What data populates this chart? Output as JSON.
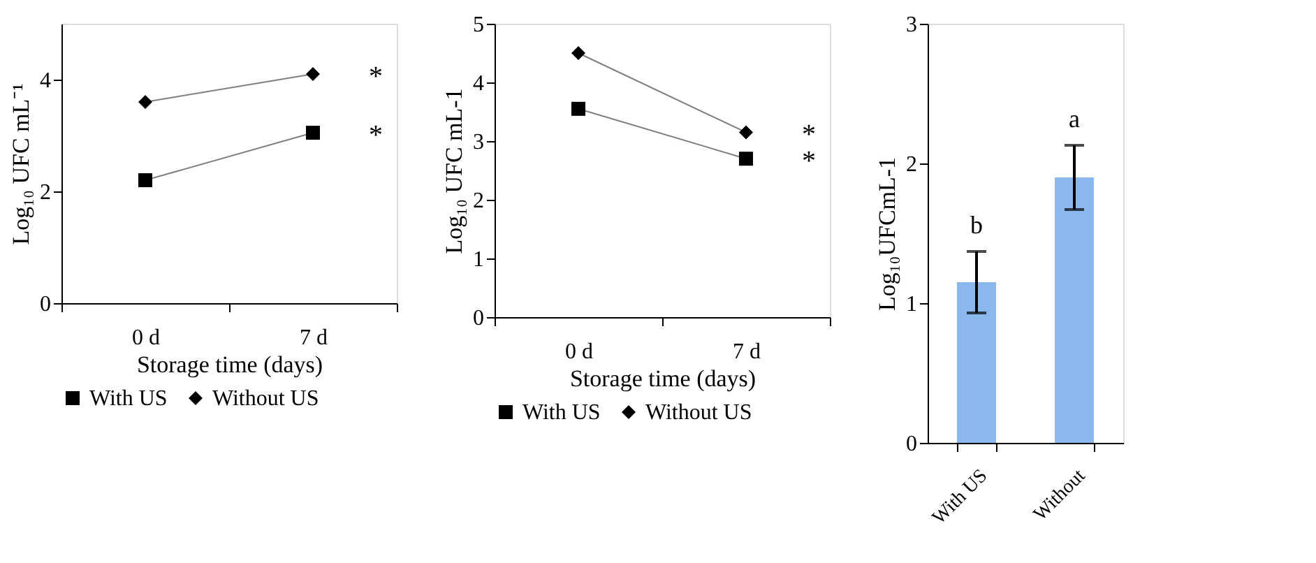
{
  "chart_data": [
    {
      "type": "line",
      "categories": [
        "0 d",
        "7 d"
      ],
      "xlabel": "Storage time (days)",
      "ylabel": "Log₁₀ UFC mL⁻¹",
      "ylim": [
        0,
        5
      ],
      "yticks": [
        0,
        2,
        4
      ],
      "grid": false,
      "legend": "bottom",
      "series": [
        {
          "name": "With US",
          "color": "#000000",
          "marker": "square",
          "values": [
            2.2,
            3.05
          ]
        },
        {
          "name": "Without US",
          "color": "#000000",
          "marker": "diamond",
          "values": [
            3.6,
            4.1
          ]
        }
      ],
      "annotations": [
        {
          "text": "*",
          "x": "7 d",
          "y": 4.1
        },
        {
          "text": "*",
          "x": "7 d",
          "y": 3.05
        }
      ]
    },
    {
      "type": "line",
      "categories": [
        "0 d",
        "7 d"
      ],
      "xlabel": "Storage time (days)",
      "ylabel": "Log₁₀ UFC mL-1",
      "ylim": [
        0,
        5
      ],
      "yticks": [
        0,
        1,
        2,
        3,
        4,
        5
      ],
      "grid": false,
      "legend": "bottom",
      "series": [
        {
          "name": "With US",
          "color": "#000000",
          "marker": "square",
          "values": [
            3.55,
            2.7
          ]
        },
        {
          "name": "Without US",
          "color": "#000000",
          "marker": "diamond",
          "values": [
            4.5,
            3.15
          ]
        }
      ],
      "annotations": [
        {
          "text": "*",
          "x": "7 d",
          "y": 3.15
        },
        {
          "text": "*",
          "x": "7 d",
          "y": 2.7
        }
      ]
    },
    {
      "type": "bar",
      "categories": [
        "With US",
        "Without"
      ],
      "ylabel": "Log₁₀UFCmL-1",
      "ylim": [
        0,
        3
      ],
      "yticks": [
        0,
        1,
        2,
        3
      ],
      "grid": false,
      "values": [
        1.15,
        1.9
      ],
      "color": "#8ab8ee",
      "errors": [
        0.22,
        0.23
      ],
      "annotations": [
        "b",
        "a"
      ]
    }
  ]
}
